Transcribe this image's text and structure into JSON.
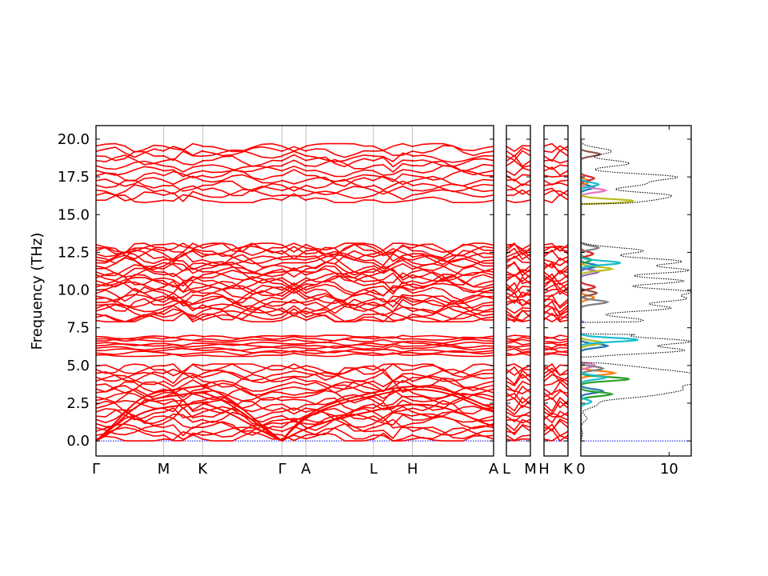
{
  "chart_data": {
    "type": "line",
    "title": "",
    "ylabel": "Frequency (THz)",
    "ylim": [
      -1.0,
      20.9
    ],
    "yticks": [
      {
        "value": 0.0,
        "label": "0.0"
      },
      {
        "value": 2.5,
        "label": "2.5"
      },
      {
        "value": 5.0,
        "label": "5.0"
      },
      {
        "value": 7.5,
        "label": "7.5"
      },
      {
        "value": 10.0,
        "label": "10.0"
      },
      {
        "value": 12.5,
        "label": "12.5"
      },
      {
        "value": 15.0,
        "label": "15.0"
      },
      {
        "value": 17.5,
        "label": "17.5"
      },
      {
        "value": 20.0,
        "label": "20.0"
      }
    ],
    "band_color": "#ff0000",
    "zero_line_color": "#0000ff",
    "band_ranges": [
      {
        "min": 0.0,
        "max": 5.1
      },
      {
        "min": 5.6,
        "max": 7.0
      },
      {
        "min": 7.9,
        "max": 13.1
      },
      {
        "min": 15.8,
        "max": 19.7
      }
    ],
    "panels": [
      {
        "path_labels": [
          "Γ",
          "M",
          "K",
          "Γ",
          "A",
          "L",
          "H",
          "A"
        ],
        "path_positions": [
          0.0,
          0.85,
          1.34,
          2.34,
          2.64,
          3.49,
          3.98,
          5.0
        ]
      },
      {
        "path_labels": [
          "L",
          "M"
        ],
        "path_positions": [
          0.0,
          1.0
        ]
      },
      {
        "path_labels": [
          "H",
          "K"
        ],
        "path_positions": [
          0.0,
          1.0
        ]
      }
    ],
    "dos": {
      "type": "area",
      "xlim": [
        0,
        12.5
      ],
      "xticks": [
        {
          "value": 0,
          "label": "0"
        },
        {
          "value": 10,
          "label": "10"
        }
      ],
      "total_color": "#000000",
      "total_peaks": [
        {
          "freq": 0.5,
          "value": 0.2
        },
        {
          "freq": 1.5,
          "value": 0.7
        },
        {
          "freq": 2.4,
          "value": 1.8
        },
        {
          "freq": 3.0,
          "value": 6.5
        },
        {
          "freq": 3.4,
          "value": 9.2
        },
        {
          "freq": 3.8,
          "value": 7.5
        },
        {
          "freq": 4.1,
          "value": 10.5
        },
        {
          "freq": 4.5,
          "value": 9.8
        },
        {
          "freq": 4.9,
          "value": 5.0
        },
        {
          "freq": 6.0,
          "value": 11.5
        },
        {
          "freq": 6.6,
          "value": 12.2
        },
        {
          "freq": 7.3,
          "value": 9.8
        },
        {
          "freq": 8.0,
          "value": 7.0
        },
        {
          "freq": 8.8,
          "value": 10.0
        },
        {
          "freq": 9.4,
          "value": 11.0
        },
        {
          "freq": 9.9,
          "value": 11.7
        },
        {
          "freq": 10.6,
          "value": 11.5
        },
        {
          "freq": 11.3,
          "value": 12.0
        },
        {
          "freq": 11.9,
          "value": 11.2
        },
        {
          "freq": 12.6,
          "value": 7.0
        },
        {
          "freq": 15.9,
          "value": 6.0
        },
        {
          "freq": 16.3,
          "value": 9.0
        },
        {
          "freq": 17.0,
          "value": 6.5
        },
        {
          "freq": 17.5,
          "value": 10.5
        },
        {
          "freq": 18.4,
          "value": 5.5
        },
        {
          "freq": 19.2,
          "value": 3.5
        }
      ],
      "partials": [
        {
          "color": "#1f77b4",
          "peaks": [
            {
              "freq": 3.3,
              "value": 2.5
            },
            {
              "freq": 6.3,
              "value": 3.0
            },
            {
              "freq": 11.6,
              "value": 2.0
            },
            {
              "freq": 16.8,
              "value": 1.5
            }
          ]
        },
        {
          "color": "#ff7f0e",
          "peaks": [
            {
              "freq": 4.5,
              "value": 3.8
            },
            {
              "freq": 9.5,
              "value": 1.5
            },
            {
              "freq": 17.2,
              "value": 1.0
            }
          ]
        },
        {
          "color": "#2ca02c",
          "peaks": [
            {
              "freq": 3.1,
              "value": 3.5
            },
            {
              "freq": 4.1,
              "value": 5.5
            },
            {
              "freq": 12.0,
              "value": 1.2
            }
          ]
        },
        {
          "color": "#d62728",
          "peaks": [
            {
              "freq": 10.2,
              "value": 1.6
            },
            {
              "freq": 12.4,
              "value": 1.4
            },
            {
              "freq": 17.4,
              "value": 1.5
            }
          ]
        },
        {
          "color": "#9467bd",
          "peaks": [
            {
              "freq": 7.6,
              "value": 4.0
            },
            {
              "freq": 11.2,
              "value": 2.0
            }
          ]
        },
        {
          "color": "#8c564b",
          "peaks": [
            {
              "freq": 9.8,
              "value": 1.8
            },
            {
              "freq": 19.0,
              "value": 2.2
            }
          ]
        },
        {
          "color": "#e377c2",
          "peaks": [
            {
              "freq": 5.0,
              "value": 1.6
            },
            {
              "freq": 16.6,
              "value": 2.8
            }
          ]
        },
        {
          "color": "#7f7f7f",
          "peaks": [
            {
              "freq": 4.8,
              "value": 2.5
            },
            {
              "freq": 9.2,
              "value": 3.0
            },
            {
              "freq": 12.8,
              "value": 2.0
            }
          ]
        },
        {
          "color": "#bcbd22",
          "peaks": [
            {
              "freq": 6.5,
              "value": 2.5
            },
            {
              "freq": 11.4,
              "value": 3.5
            },
            {
              "freq": 15.9,
              "value": 6.0
            }
          ]
        },
        {
          "color": "#17becf",
          "peaks": [
            {
              "freq": 2.6,
              "value": 1.2
            },
            {
              "freq": 4.2,
              "value": 2.8
            },
            {
              "freq": 6.7,
              "value": 6.5
            },
            {
              "freq": 11.8,
              "value": 4.5
            },
            {
              "freq": 17.0,
              "value": 2.0
            }
          ]
        }
      ]
    }
  }
}
